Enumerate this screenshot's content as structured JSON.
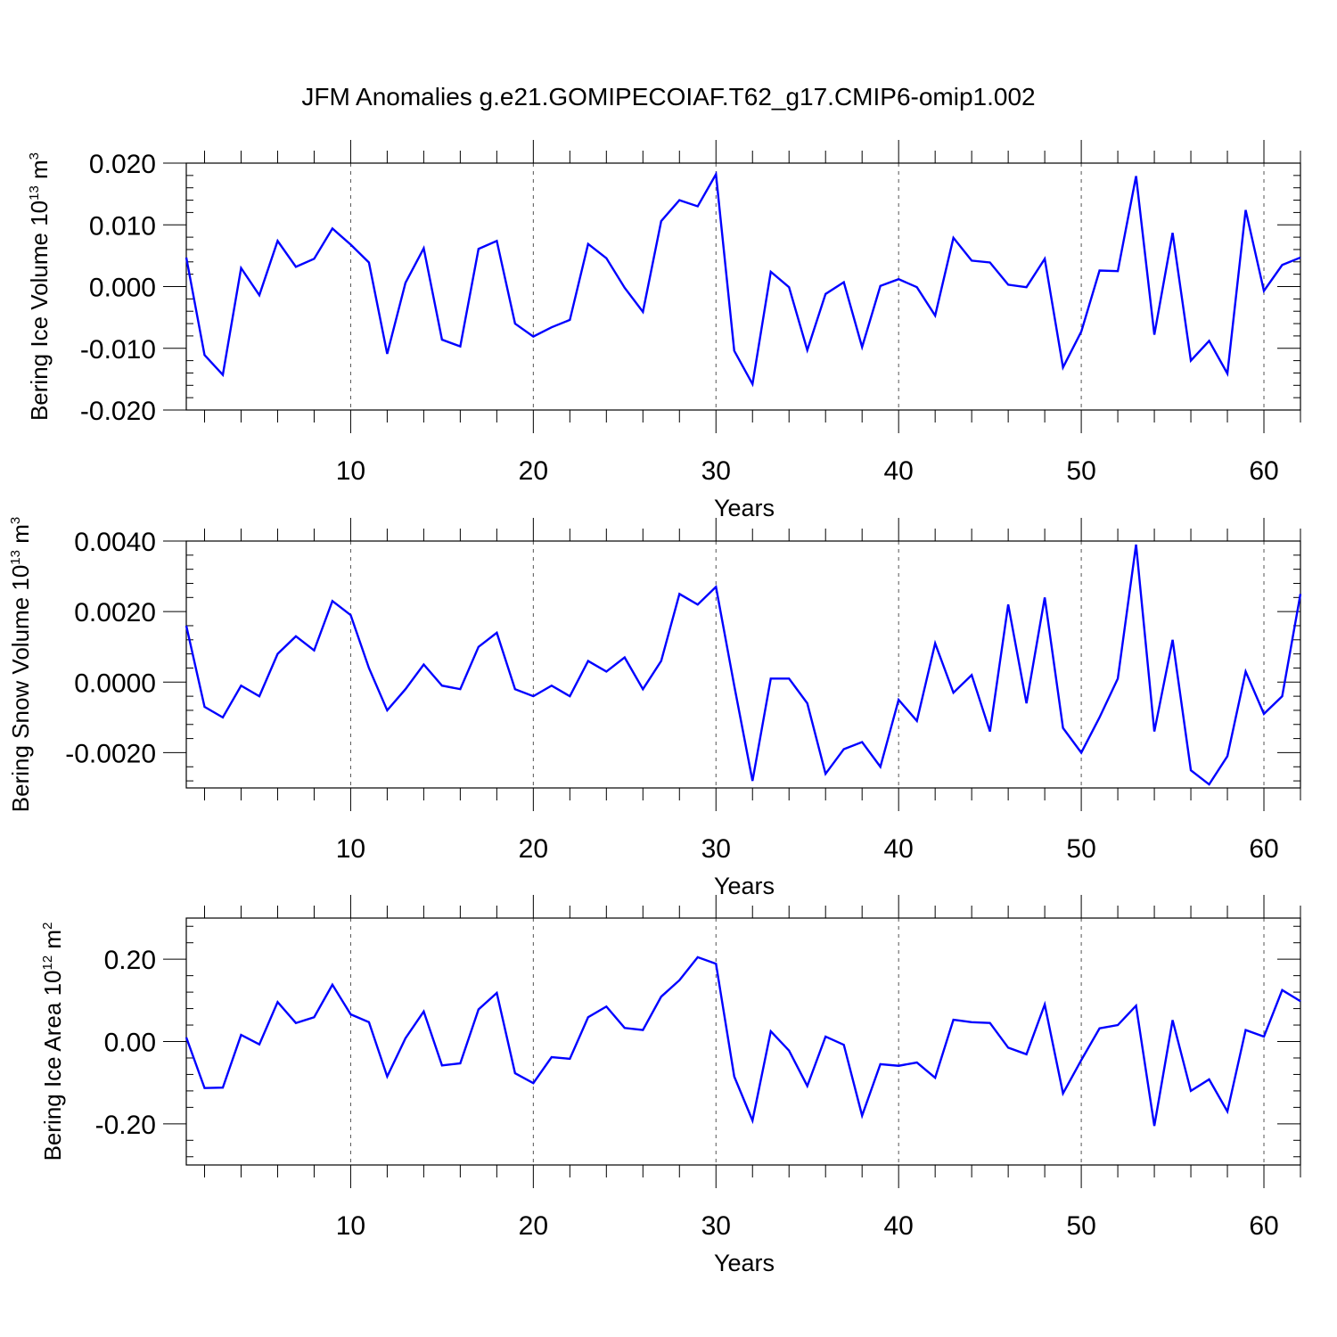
{
  "figure": {
    "title": "JFM Anomalies g.e21.GOMIPECOIAF.T62_g17.CMIP6-omip1.002"
  },
  "colors": {
    "line": "#0000ff",
    "axis": "#000000",
    "grid": "#555555"
  },
  "chart_data": [
    {
      "type": "line",
      "title": "",
      "xlabel": "Years",
      "ylabel": {
        "text": "Bering Ice Volume 10",
        "exponent": "13",
        "unit": " m",
        "unit_exponent": "3"
      },
      "xlim": [
        1,
        62
      ],
      "ylim": [
        -0.02,
        0.02
      ],
      "xticks": [
        10,
        20,
        30,
        40,
        50,
        60
      ],
      "xtick_labels": [
        "10",
        "20",
        "30",
        "40",
        "50",
        "60"
      ],
      "yticks": [
        -0.02,
        -0.01,
        0.0,
        0.01,
        0.02
      ],
      "ytick_labels": [
        "-0.020",
        "-0.010",
        "0.000",
        "0.010",
        "0.020"
      ],
      "vgrid": "dashed at major x ticks",
      "series": [
        {
          "color": "#0000ff",
          "x": [
            1,
            2,
            3,
            4,
            5,
            6,
            7,
            8,
            9,
            10,
            11,
            12,
            13,
            14,
            15,
            16,
            17,
            18,
            19,
            20,
            21,
            22,
            23,
            24,
            25,
            26,
            27,
            28,
            29,
            30,
            31,
            32,
            33,
            34,
            35,
            36,
            37,
            38,
            39,
            40,
            41,
            42,
            43,
            44,
            45,
            46,
            47,
            48,
            49,
            50,
            51,
            52,
            53,
            54,
            55,
            56,
            57,
            58,
            59,
            60,
            61,
            62
          ],
          "y": [
            0.0047,
            -0.0111,
            -0.0143,
            0.003,
            -0.0014,
            0.0074,
            0.0032,
            0.0045,
            0.0094,
            0.0068,
            0.0039,
            -0.0109,
            0.0006,
            0.0062,
            -0.0086,
            -0.0097,
            0.0061,
            0.0074,
            -0.006,
            -0.0081,
            -0.0066,
            -0.0054,
            0.0069,
            0.0046,
            -0.0002,
            -0.0041,
            0.0106,
            0.014,
            0.013,
            0.0182,
            -0.0104,
            -0.0158,
            0.0024,
            -0.0001,
            -0.0103,
            -0.0012,
            0.0007,
            -0.0098,
            0.0001,
            0.0012,
            -0.0001,
            -0.0047,
            0.0079,
            0.0042,
            0.0039,
            0.0003,
            -0.0001,
            0.0045,
            -0.0131,
            -0.0073,
            0.0026,
            0.0025,
            0.0179,
            -0.0078,
            0.0087,
            -0.012,
            -0.0088,
            -0.0141,
            0.0124,
            -0.0007,
            0.0035,
            0.0047
          ]
        }
      ]
    },
    {
      "type": "line",
      "title": "",
      "xlabel": "Years",
      "ylabel": {
        "text": "Bering Snow Volume 10",
        "exponent": "13",
        "unit": " m",
        "unit_exponent": "3"
      },
      "xlim": [
        1,
        62
      ],
      "ylim": [
        -0.003,
        0.004
      ],
      "xticks": [
        10,
        20,
        30,
        40,
        50,
        60
      ],
      "xtick_labels": [
        "10",
        "20",
        "30",
        "40",
        "50",
        "60"
      ],
      "yticks": [
        -0.002,
        0.0,
        0.002,
        0.004
      ],
      "ytick_labels": [
        "-0.0020",
        "0.0000",
        "0.0020",
        "0.0040"
      ],
      "vgrid": "dashed at major x ticks",
      "series": [
        {
          "color": "#0000ff",
          "x": [
            1,
            2,
            3,
            4,
            5,
            6,
            7,
            8,
            9,
            10,
            11,
            12,
            13,
            14,
            15,
            16,
            17,
            18,
            19,
            20,
            21,
            22,
            23,
            24,
            25,
            26,
            27,
            28,
            29,
            30,
            31,
            32,
            33,
            34,
            35,
            36,
            37,
            38,
            39,
            40,
            41,
            42,
            43,
            44,
            45,
            46,
            47,
            48,
            49,
            50,
            51,
            52,
            53,
            54,
            55,
            56,
            57,
            58,
            59,
            60,
            61,
            62
          ],
          "y": [
            0.0016,
            -0.0007,
            -0.001,
            -0.0001,
            -0.0004,
            0.0008,
            0.0013,
            0.0009,
            0.0023,
            0.0019,
            0.0004,
            -0.0008,
            -0.0002,
            0.0005,
            -0.0001,
            -0.0002,
            0.001,
            0.0014,
            -0.0002,
            -0.0004,
            -0.0001,
            -0.0004,
            0.0006,
            0.0003,
            0.0007,
            -0.0002,
            0.0006,
            0.0025,
            0.0022,
            0.0027,
            -0.0001,
            -0.0028,
            0.0001,
            0.0001,
            -0.0006,
            -0.0026,
            -0.0019,
            -0.0017,
            -0.0024,
            -0.0005,
            -0.0011,
            0.0011,
            -0.0003,
            0.0002,
            -0.0014,
            0.0022,
            -0.0006,
            0.0024,
            -0.0013,
            -0.002,
            -0.001,
            0.0001,
            0.0039,
            -0.0014,
            0.0012,
            -0.0025,
            -0.0029,
            -0.0021,
            0.0003,
            -0.0009,
            -0.0004,
            0.0025
          ]
        }
      ]
    },
    {
      "type": "line",
      "title": "",
      "xlabel": "Years",
      "ylabel": {
        "text": "Bering Ice Area 10",
        "exponent": "12",
        "unit": " m",
        "unit_exponent": "2"
      },
      "xlim": [
        1,
        62
      ],
      "ylim": [
        -0.3,
        0.3
      ],
      "xticks": [
        10,
        20,
        30,
        40,
        50,
        60
      ],
      "xtick_labels": [
        "10",
        "20",
        "30",
        "40",
        "50",
        "60"
      ],
      "yticks": [
        -0.2,
        0.0,
        0.2
      ],
      "ytick_labels": [
        "-0.20",
        "0.00",
        "0.20"
      ],
      "vgrid": "dashed at major x ticks",
      "series": [
        {
          "color": "#0000ff",
          "x": [
            1,
            2,
            3,
            4,
            5,
            6,
            7,
            8,
            9,
            10,
            11,
            12,
            13,
            14,
            15,
            16,
            17,
            18,
            19,
            20,
            21,
            22,
            23,
            24,
            25,
            26,
            27,
            28,
            29,
            30,
            31,
            32,
            33,
            34,
            35,
            36,
            37,
            38,
            39,
            40,
            41,
            42,
            43,
            44,
            45,
            46,
            47,
            48,
            49,
            50,
            51,
            52,
            53,
            54,
            55,
            56,
            57,
            58,
            59,
            60,
            61,
            62
          ],
          "y": [
            0.01,
            -0.113,
            -0.112,
            0.016,
            -0.007,
            0.096,
            0.045,
            0.059,
            0.138,
            0.066,
            0.047,
            -0.085,
            0.008,
            0.073,
            -0.058,
            -0.053,
            0.078,
            0.118,
            -0.077,
            -0.101,
            -0.038,
            -0.042,
            0.059,
            0.085,
            0.033,
            0.028,
            0.109,
            0.149,
            0.205,
            0.189,
            -0.085,
            -0.192,
            0.025,
            -0.022,
            -0.108,
            0.012,
            -0.008,
            -0.18,
            -0.055,
            -0.059,
            -0.051,
            -0.088,
            0.053,
            0.047,
            0.045,
            -0.015,
            -0.031,
            0.09,
            -0.126,
            -0.045,
            0.032,
            0.04,
            0.087,
            -0.205,
            0.052,
            -0.12,
            -0.092,
            -0.17,
            0.028,
            0.012,
            0.125,
            0.098
          ]
        }
      ]
    }
  ]
}
